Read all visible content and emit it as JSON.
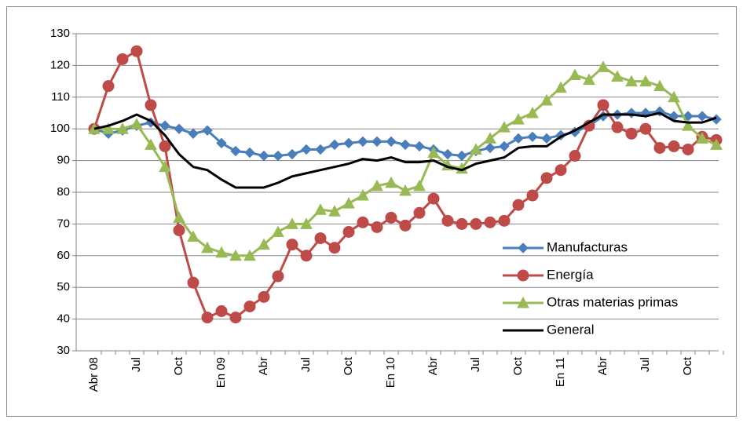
{
  "chart_data": {
    "type": "line",
    "categories": [
      "Abr 08",
      null,
      null,
      "Jul",
      null,
      null,
      "Oct",
      null,
      null,
      "En 09",
      null,
      null,
      "Abr",
      null,
      null,
      "Jul",
      null,
      null,
      "Oct",
      null,
      null,
      "En 10",
      null,
      null,
      "Abr",
      null,
      null,
      "Jul",
      null,
      null,
      "Oct",
      null,
      null,
      "En 11",
      null,
      null,
      "Abr",
      null,
      null,
      "Jul",
      null,
      null,
      "Oct",
      null,
      null
    ],
    "series": [
      {
        "name": "Manufacturas",
        "color": "#4a7ebb",
        "marker": "diamond",
        "values": [
          100,
          98.5,
          99.5,
          101,
          102,
          101,
          100,
          98.5,
          99.5,
          95.5,
          93,
          92.5,
          91.5,
          91.5,
          92,
          93.5,
          93.5,
          95,
          95.5,
          96,
          96,
          96,
          95,
          94.5,
          93.5,
          92,
          91.5,
          93,
          94,
          94.5,
          97,
          97.5,
          97,
          98,
          99,
          101,
          104,
          104.5,
          105,
          105,
          105.5,
          104,
          104,
          104,
          103
        ]
      },
      {
        "name": "Energía",
        "color": "#be4b48",
        "marker": "circle",
        "values": [
          100,
          113.5,
          122,
          124.5,
          107.5,
          94.5,
          68,
          51.5,
          40.5,
          42.5,
          40.5,
          44,
          47,
          53.5,
          63.5,
          60,
          65.5,
          62.5,
          67.5,
          70.5,
          69,
          72,
          69.5,
          73.5,
          78,
          71,
          70,
          70,
          70.5,
          71,
          76,
          79,
          84.5,
          87,
          91.5,
          101,
          107.5,
          100.5,
          98.5,
          100,
          94,
          94.5,
          93.5,
          97.5,
          96.5
        ]
      },
      {
        "name": "Otras materias primas",
        "color": "#98b954",
        "marker": "triangle",
        "values": [
          100,
          100,
          100,
          101.5,
          95,
          88,
          72,
          66,
          62.5,
          61,
          60,
          60,
          63.5,
          67.5,
          70,
          70,
          74.5,
          74,
          76.5,
          79,
          82,
          83,
          80.5,
          82,
          92.5,
          88.5,
          87.5,
          93.5,
          97,
          100.5,
          103,
          105,
          109,
          113,
          117,
          115.5,
          119.5,
          116.5,
          115,
          115,
          113.5,
          110,
          101,
          97,
          95
        ]
      },
      {
        "name": "General",
        "color": "#000000",
        "marker": "none",
        "values": [
          100,
          101,
          102.5,
          104.5,
          102.5,
          98,
          92,
          88,
          87,
          84,
          81.5,
          81.5,
          81.5,
          83,
          85,
          86,
          87,
          88,
          89,
          90.5,
          90,
          91,
          89.5,
          89.5,
          90,
          88,
          87,
          89,
          90,
          91,
          94,
          94.5,
          94.5,
          97.5,
          99.5,
          102,
          104.5,
          104.5,
          104.5,
          104,
          105,
          102.5,
          102,
          102,
          103.5
        ]
      }
    ],
    "ylim": [
      30,
      130
    ],
    "yticks": [
      30,
      40,
      50,
      60,
      70,
      80,
      90,
      100,
      110,
      120,
      130
    ],
    "grid": true,
    "legend": "lower-right"
  }
}
